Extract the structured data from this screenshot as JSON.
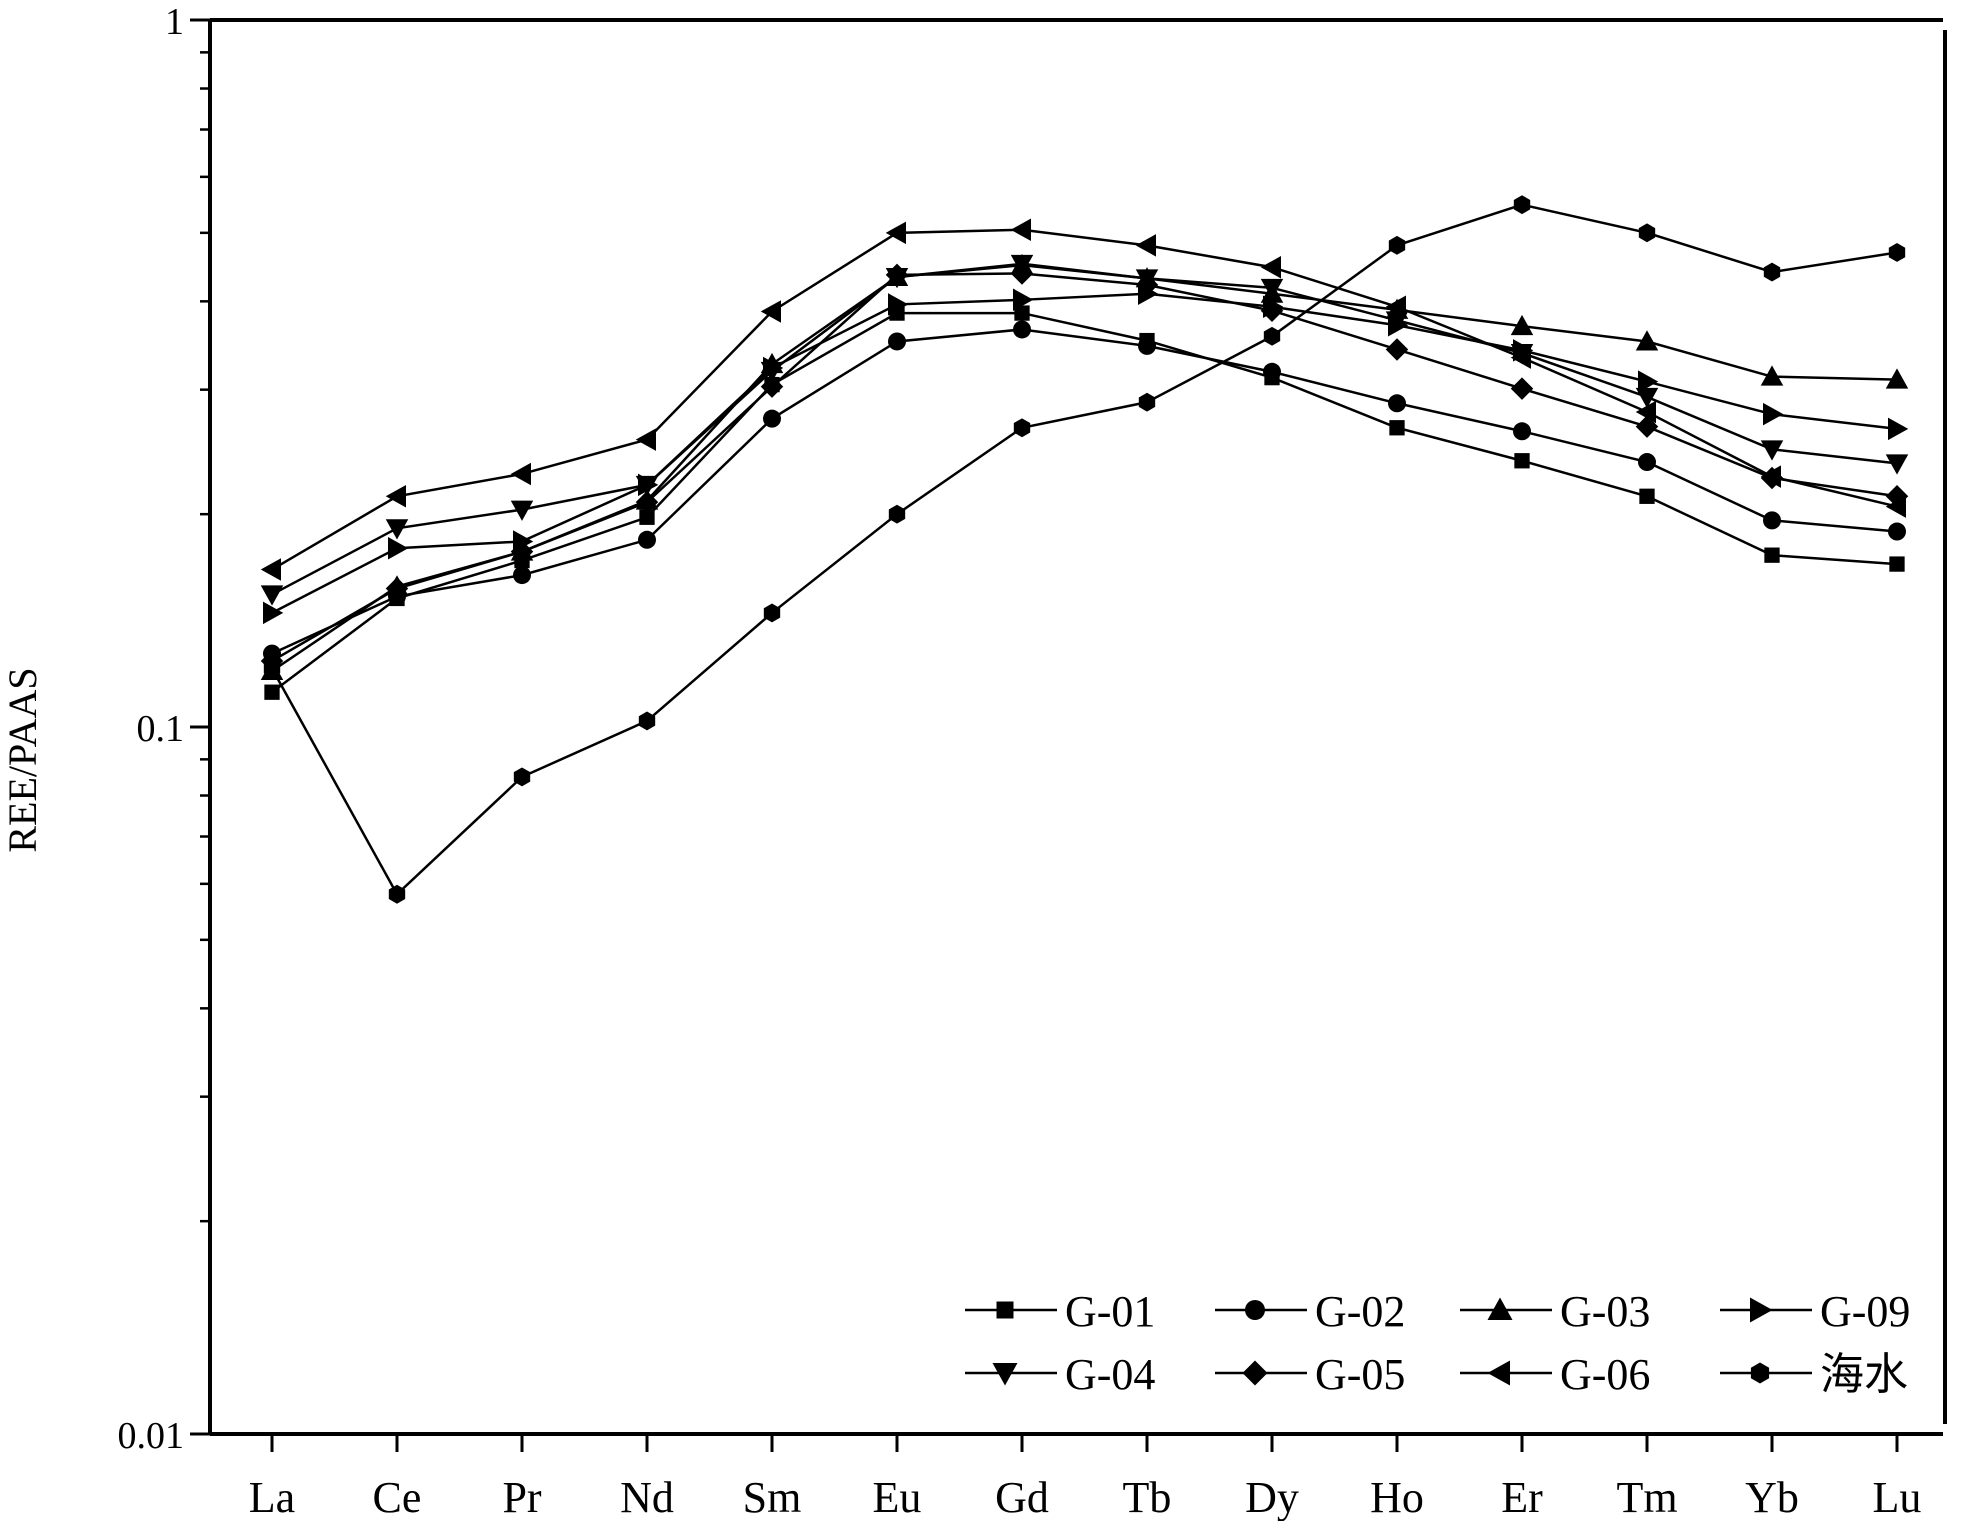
{
  "chart_data": {
    "type": "line",
    "ylabel": "REE/PAAS",
    "yscale": "log",
    "ylim": [
      0.01,
      1
    ],
    "yticks": [
      {
        "value": 1,
        "label": "1"
      },
      {
        "value": 0.1,
        "label": "0.1"
      },
      {
        "value": 0.01,
        "label": "0.01"
      }
    ],
    "grid": false,
    "legend_position": "bottom-right",
    "categories": [
      "La",
      "Ce",
      "Pr",
      "Nd",
      "Sm",
      "Eu",
      "Gd",
      "Tb",
      "Dy",
      "Ho",
      "Er",
      "Tm",
      "Yb",
      "Lu"
    ],
    "series": [
      {
        "name": "G-01",
        "marker": "square",
        "values": [
          0.112,
          0.152,
          0.172,
          0.198,
          0.305,
          0.385,
          0.385,
          0.352,
          0.312,
          0.265,
          0.238,
          0.212,
          0.175,
          0.17
        ]
      },
      {
        "name": "G-02",
        "marker": "circle",
        "values": [
          0.127,
          0.153,
          0.164,
          0.184,
          0.273,
          0.351,
          0.365,
          0.346,
          0.318,
          0.287,
          0.262,
          0.237,
          0.196,
          0.189
        ]
      },
      {
        "name": "G-03",
        "marker": "triangle-up",
        "values": [
          0.12,
          0.158,
          0.177,
          0.209,
          0.326,
          0.433,
          0.45,
          0.431,
          0.41,
          0.389,
          0.369,
          0.351,
          0.313,
          0.31
        ]
      },
      {
        "name": "G-09",
        "marker": "triangle-right",
        "values": [
          0.145,
          0.179,
          0.183,
          0.22,
          0.322,
          0.396,
          0.402,
          0.41,
          0.393,
          0.37,
          0.341,
          0.308,
          0.277,
          0.264
        ]
      },
      {
        "name": "G-04",
        "marker": "triangle-down",
        "values": [
          0.154,
          0.191,
          0.203,
          0.22,
          0.319,
          0.433,
          0.452,
          0.431,
          0.418,
          0.376,
          0.338,
          0.293,
          0.247,
          0.236
        ]
      },
      {
        "name": "G-05",
        "marker": "diamond",
        "values": [
          0.124,
          0.157,
          0.177,
          0.208,
          0.303,
          0.436,
          0.438,
          0.422,
          0.388,
          0.342,
          0.301,
          0.266,
          0.225,
          0.212
        ]
      },
      {
        "name": "G-06",
        "marker": "triangle-left",
        "values": [
          0.167,
          0.212,
          0.228,
          0.255,
          0.387,
          0.5,
          0.505,
          0.48,
          0.447,
          0.393,
          0.333,
          0.279,
          0.226,
          0.205
        ]
      },
      {
        "name": "海水",
        "marker": "hexagon",
        "values": [
          0.121,
          0.058,
          0.085,
          0.102,
          0.145,
          0.2,
          0.265,
          0.288,
          0.357,
          0.48,
          0.548,
          0.5,
          0.44,
          0.469
        ]
      }
    ]
  }
}
